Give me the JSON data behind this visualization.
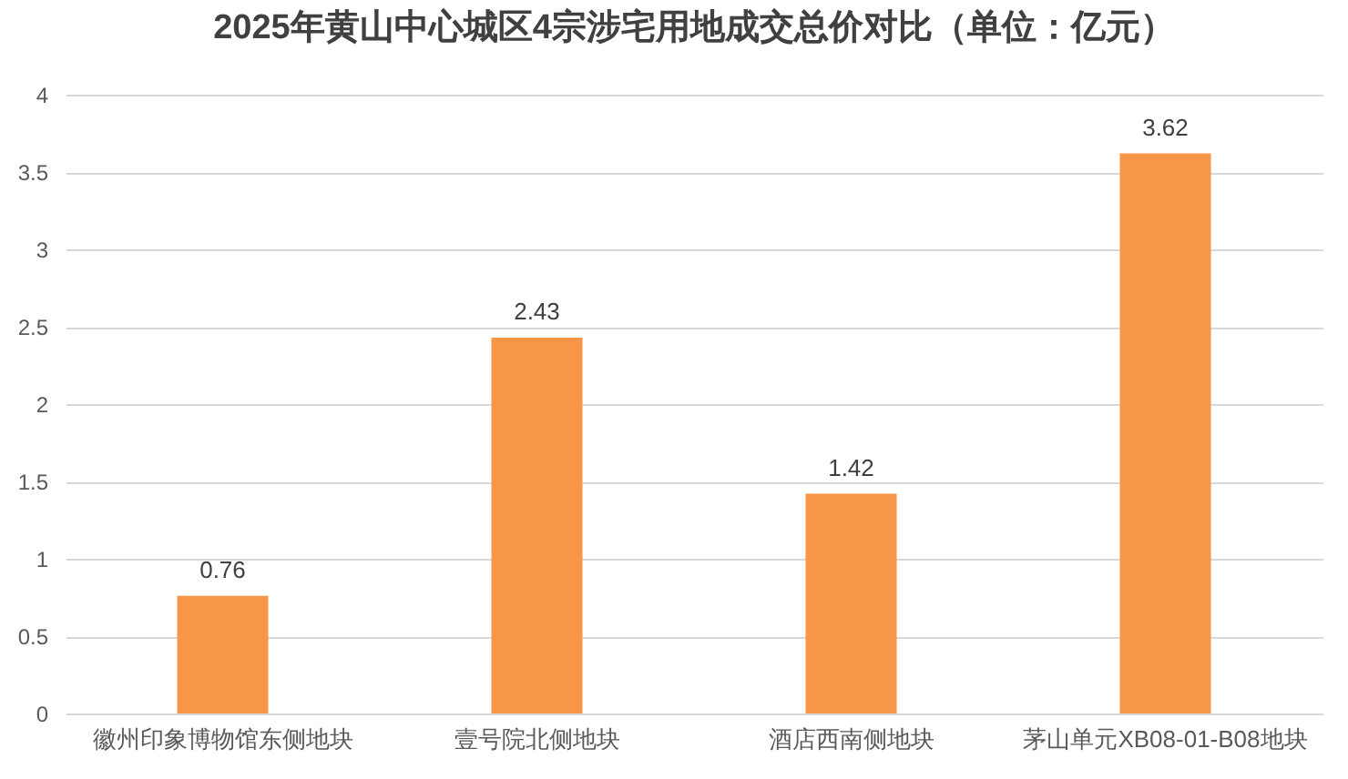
{
  "chart_data": {
    "type": "bar",
    "title": "2025年黄山中心城区4宗涉宅用地成交总价对比（单位：亿元）",
    "categories": [
      "徽州印象博物馆东侧地块",
      "壹号院北侧地块",
      "酒店西南侧地块",
      "茅山单元XB08-01-B08地块"
    ],
    "values": [
      0.76,
      2.43,
      1.42,
      3.62
    ],
    "color": "#f79646",
    "ylim": [
      0,
      4
    ],
    "yticks": [
      0,
      0.5,
      1,
      1.5,
      2,
      2.5,
      3,
      3.5,
      4
    ],
    "grid": "y",
    "data_labels": true
  }
}
